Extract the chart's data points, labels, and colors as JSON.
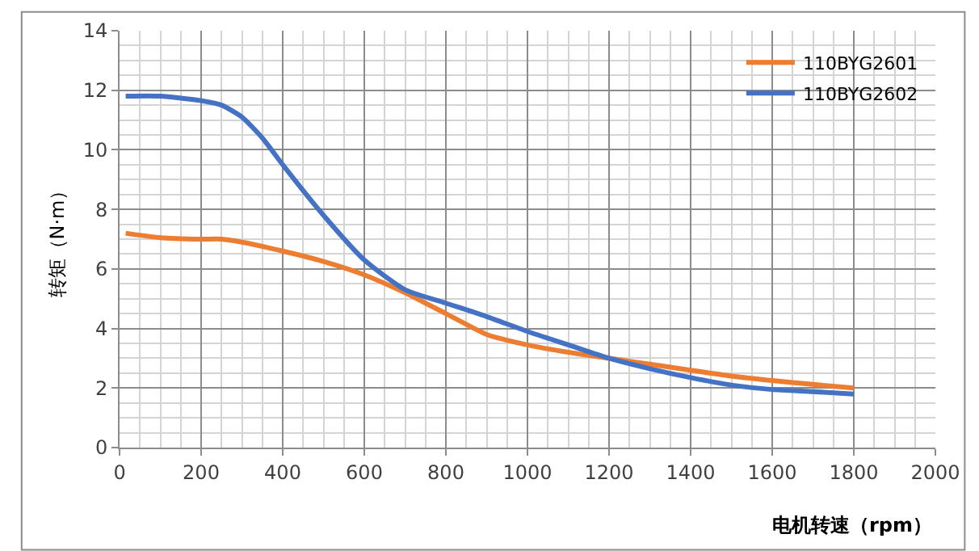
{
  "chart_data": {
    "type": "line",
    "xlabel": "电机转速（rpm）",
    "ylabel": "转矩（N·m）",
    "xlim": [
      0,
      2000
    ],
    "xticks": [
      0,
      200,
      400,
      600,
      800,
      1000,
      1200,
      1400,
      1600,
      1800,
      2000
    ],
    "ylim": [
      0,
      14
    ],
    "yticks": [
      0,
      2,
      4,
      6,
      8,
      10,
      12,
      14
    ],
    "grid": true,
    "legend": "top right",
    "marker": "none",
    "line_style": "solid",
    "series": [
      {
        "name": "110BYG2601",
        "color": "#ed7d31",
        "x": [
          15,
          100,
          200,
          250,
          300,
          400,
          500,
          600,
          700,
          800,
          900,
          1000,
          1100,
          1200,
          1300,
          1400,
          1500,
          1600,
          1700,
          1800
        ],
        "values": [
          7.2,
          7.05,
          7.0,
          7.0,
          6.9,
          6.6,
          6.25,
          5.8,
          5.2,
          4.5,
          3.8,
          3.45,
          3.2,
          3.0,
          2.8,
          2.6,
          2.4,
          2.25,
          2.12,
          2.0
        ]
      },
      {
        "name": "110BYG2602",
        "color": "#4472c4",
        "x": [
          15,
          100,
          200,
          250,
          300,
          350,
          400,
          500,
          600,
          700,
          800,
          900,
          1000,
          1100,
          1200,
          1300,
          1400,
          1500,
          1600,
          1700,
          1800
        ],
        "values": [
          11.8,
          11.8,
          11.65,
          11.5,
          11.1,
          10.4,
          9.5,
          7.8,
          6.3,
          5.3,
          4.85,
          4.4,
          3.9,
          3.45,
          3.0,
          2.65,
          2.35,
          2.1,
          1.95,
          1.88,
          1.8
        ]
      }
    ]
  }
}
